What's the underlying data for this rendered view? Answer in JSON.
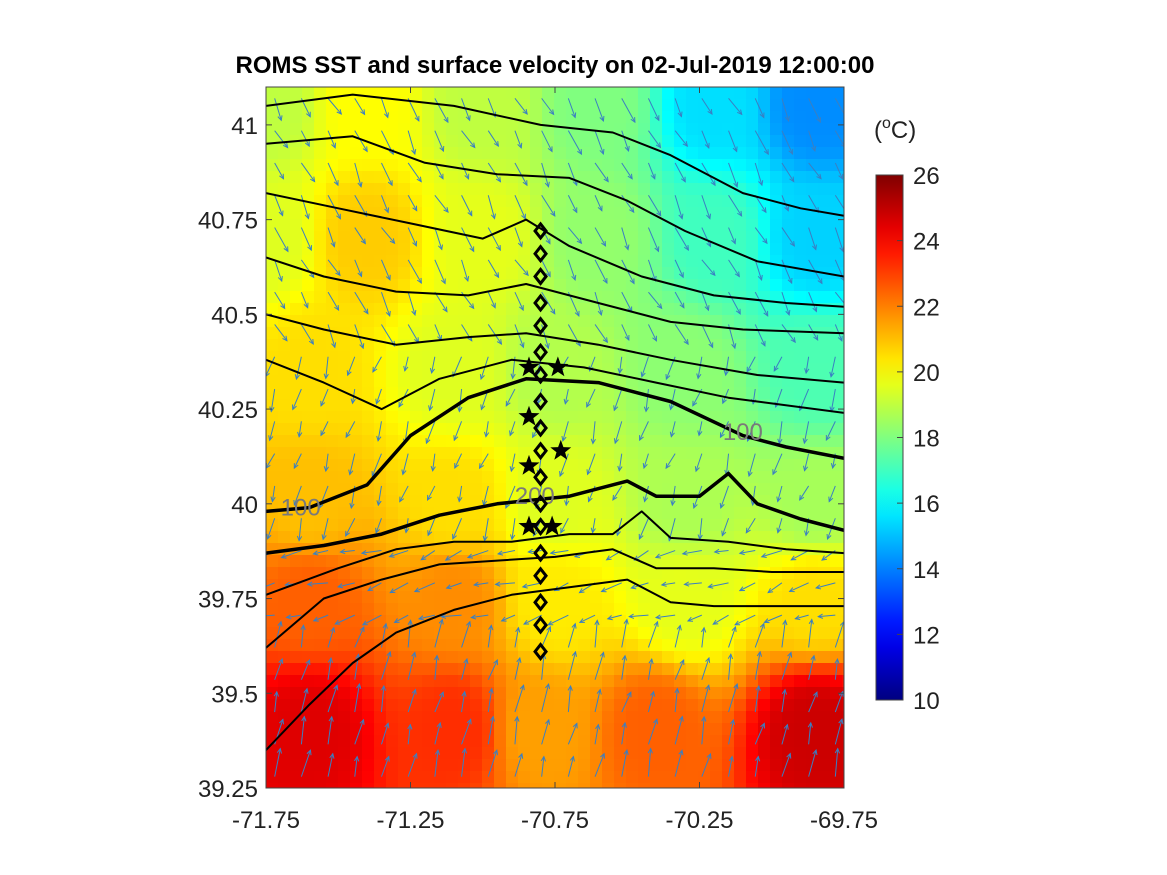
{
  "chart_data": {
    "type": "heatmap",
    "title": "ROMS SST and surface velocity on 02-Jul-2019 12:00:00",
    "xlabel": "",
    "ylabel": "",
    "xlim": [
      -71.75,
      -69.75
    ],
    "ylim": [
      39.25,
      41.1
    ],
    "x_ticks": [
      "-71.75",
      "-71.25",
      "-70.75",
      "-70.25",
      "-69.75"
    ],
    "y_ticks": [
      "39.25",
      "39.5",
      "39.75",
      "40",
      "40.25",
      "40.5",
      "40.75",
      "41"
    ],
    "colorbar": {
      "label_base": "(",
      "label_sup": "o",
      "label_unit": "C)",
      "range": [
        10,
        26
      ],
      "ticks": [
        "10",
        "12",
        "14",
        "16",
        "18",
        "20",
        "22",
        "24",
        "26"
      ],
      "colormap": "jet"
    },
    "sst_field": {
      "description_units": "degC",
      "anchors": [
        {
          "lon": -71.75,
          "lat": 41.05,
          "value": 19.0
        },
        {
          "lon": -71.4,
          "lat": 41.05,
          "value": 20.0
        },
        {
          "lon": -71.0,
          "lat": 41.05,
          "value": 19.0
        },
        {
          "lon": -70.6,
          "lat": 41.05,
          "value": 18.0
        },
        {
          "lon": -70.2,
          "lat": 41.05,
          "value": 15.5
        },
        {
          "lon": -69.85,
          "lat": 41.05,
          "value": 14.2
        },
        {
          "lon": -71.75,
          "lat": 40.7,
          "value": 19.5
        },
        {
          "lon": -71.4,
          "lat": 40.7,
          "value": 20.8
        },
        {
          "lon": -71.0,
          "lat": 40.7,
          "value": 19.6
        },
        {
          "lon": -70.6,
          "lat": 40.7,
          "value": 18.3
        },
        {
          "lon": -70.2,
          "lat": 40.7,
          "value": 17.0
        },
        {
          "lon": -69.85,
          "lat": 40.7,
          "value": 15.3
        },
        {
          "lon": -71.6,
          "lat": 40.35,
          "value": 20.5
        },
        {
          "lon": -71.1,
          "lat": 40.35,
          "value": 19.5
        },
        {
          "lon": -70.75,
          "lat": 40.35,
          "value": 18.8
        },
        {
          "lon": -70.3,
          "lat": 40.35,
          "value": 18.2
        },
        {
          "lon": -69.85,
          "lat": 40.35,
          "value": 17.2
        },
        {
          "lon": -71.6,
          "lat": 40.0,
          "value": 21.0
        },
        {
          "lon": -71.1,
          "lat": 40.0,
          "value": 20.5
        },
        {
          "lon": -70.75,
          "lat": 40.0,
          "value": 19.5
        },
        {
          "lon": -70.3,
          "lat": 40.0,
          "value": 18.7
        },
        {
          "lon": -69.85,
          "lat": 40.0,
          "value": 18.6
        },
        {
          "lon": -71.6,
          "lat": 39.75,
          "value": 22.5
        },
        {
          "lon": -71.1,
          "lat": 39.75,
          "value": 21.8
        },
        {
          "lon": -70.75,
          "lat": 39.75,
          "value": 20.3
        },
        {
          "lon": -70.3,
          "lat": 39.75,
          "value": 19.6
        },
        {
          "lon": -69.85,
          "lat": 39.75,
          "value": 20.5
        },
        {
          "lon": -71.6,
          "lat": 39.4,
          "value": 24.5
        },
        {
          "lon": -71.1,
          "lat": 39.4,
          "value": 23.3
        },
        {
          "lon": -70.8,
          "lat": 39.4,
          "value": 21.5
        },
        {
          "lon": -70.4,
          "lat": 39.4,
          "value": 22.5
        },
        {
          "lon": -69.85,
          "lat": 39.4,
          "value": 24.8
        }
      ]
    },
    "contours": [
      {
        "level": "",
        "bold": false,
        "points": [
          [
            -71.75,
            41.05
          ],
          [
            -71.45,
            41.08
          ],
          [
            -71.1,
            41.05
          ],
          [
            -70.8,
            41.0
          ],
          [
            -70.55,
            40.98
          ],
          [
            -70.35,
            40.92
          ],
          [
            -70.1,
            40.82
          ],
          [
            -69.9,
            40.78
          ],
          [
            -69.75,
            40.76
          ]
        ]
      },
      {
        "level": "",
        "bold": false,
        "points": [
          [
            -71.75,
            40.95
          ],
          [
            -71.45,
            40.97
          ],
          [
            -71.2,
            40.9
          ],
          [
            -70.95,
            40.87
          ],
          [
            -70.7,
            40.86
          ],
          [
            -70.5,
            40.8
          ],
          [
            -70.3,
            40.72
          ],
          [
            -70.05,
            40.64
          ],
          [
            -69.75,
            40.6
          ]
        ]
      },
      {
        "level": "",
        "bold": false,
        "points": [
          [
            -71.75,
            40.82
          ],
          [
            -71.5,
            40.78
          ],
          [
            -71.25,
            40.74
          ],
          [
            -71.0,
            40.7
          ],
          [
            -70.85,
            40.75
          ],
          [
            -70.7,
            40.68
          ],
          [
            -70.45,
            40.6
          ],
          [
            -70.2,
            40.55
          ],
          [
            -69.95,
            40.53
          ],
          [
            -69.75,
            40.52
          ]
        ]
      },
      {
        "level": "",
        "bold": false,
        "points": [
          [
            -71.75,
            40.65
          ],
          [
            -71.55,
            40.6
          ],
          [
            -71.3,
            40.56
          ],
          [
            -71.05,
            40.55
          ],
          [
            -70.85,
            40.58
          ],
          [
            -70.6,
            40.53
          ],
          [
            -70.35,
            40.48
          ],
          [
            -70.1,
            40.46
          ],
          [
            -69.75,
            40.45
          ]
        ]
      },
      {
        "level": "",
        "bold": false,
        "points": [
          [
            -71.75,
            40.5
          ],
          [
            -71.55,
            40.46
          ],
          [
            -71.3,
            40.42
          ],
          [
            -71.05,
            40.44
          ],
          [
            -70.85,
            40.45
          ],
          [
            -70.6,
            40.42
          ],
          [
            -70.35,
            40.38
          ],
          [
            -70.05,
            40.34
          ],
          [
            -69.75,
            40.32
          ]
        ]
      },
      {
        "level": "",
        "bold": false,
        "points": [
          [
            -71.75,
            40.38
          ],
          [
            -71.55,
            40.32
          ],
          [
            -71.35,
            40.25
          ],
          [
            -71.15,
            40.33
          ],
          [
            -70.9,
            40.38
          ],
          [
            -70.65,
            40.36
          ],
          [
            -70.4,
            40.32
          ],
          [
            -70.15,
            40.28
          ],
          [
            -69.75,
            40.24
          ]
        ]
      },
      {
        "level": "100",
        "bold": true,
        "points": [
          [
            -71.75,
            39.98
          ],
          [
            -71.6,
            39.99
          ],
          [
            -71.4,
            40.05
          ],
          [
            -71.25,
            40.18
          ],
          [
            -71.05,
            40.28
          ],
          [
            -70.85,
            40.33
          ],
          [
            -70.6,
            40.32
          ],
          [
            -70.35,
            40.27
          ],
          [
            -70.1,
            40.18
          ],
          [
            -69.95,
            40.15
          ],
          [
            -69.75,
            40.12
          ]
        ]
      },
      {
        "level": "200",
        "bold": true,
        "points": [
          [
            -71.75,
            39.87
          ],
          [
            -71.55,
            39.89
          ],
          [
            -71.35,
            39.92
          ],
          [
            -71.15,
            39.97
          ],
          [
            -70.95,
            40.0
          ],
          [
            -70.7,
            40.02
          ],
          [
            -70.5,
            40.06
          ],
          [
            -70.4,
            40.02
          ],
          [
            -70.25,
            40.02
          ],
          [
            -70.15,
            40.08
          ],
          [
            -70.05,
            40.0
          ],
          [
            -69.9,
            39.96
          ],
          [
            -69.75,
            39.93
          ]
        ]
      },
      {
        "level": "",
        "bold": false,
        "points": [
          [
            -71.75,
            39.76
          ],
          [
            -71.5,
            39.83
          ],
          [
            -71.3,
            39.88
          ],
          [
            -71.1,
            39.9
          ],
          [
            -70.9,
            39.9
          ],
          [
            -70.7,
            39.92
          ],
          [
            -70.55,
            39.92
          ],
          [
            -70.45,
            39.98
          ],
          [
            -70.35,
            39.91
          ],
          [
            -70.15,
            39.9
          ],
          [
            -69.95,
            39.88
          ],
          [
            -69.75,
            39.87
          ]
        ]
      },
      {
        "level": "",
        "bold": false,
        "points": [
          [
            -71.75,
            39.62
          ],
          [
            -71.55,
            39.75
          ],
          [
            -71.35,
            39.8
          ],
          [
            -71.15,
            39.84
          ],
          [
            -70.95,
            39.85
          ],
          [
            -70.75,
            39.86
          ],
          [
            -70.55,
            39.88
          ],
          [
            -70.4,
            39.83
          ],
          [
            -70.2,
            39.83
          ],
          [
            -70.0,
            39.82
          ],
          [
            -69.75,
            39.82
          ]
        ]
      },
      {
        "level": "",
        "bold": false,
        "points": [
          [
            -71.75,
            39.35
          ],
          [
            -71.6,
            39.47
          ],
          [
            -71.45,
            39.58
          ],
          [
            -71.3,
            39.66
          ],
          [
            -71.1,
            39.72
          ],
          [
            -70.9,
            39.76
          ],
          [
            -70.7,
            39.78
          ],
          [
            -70.5,
            39.8
          ],
          [
            -70.35,
            39.74
          ],
          [
            -70.2,
            39.73
          ],
          [
            -70.0,
            39.73
          ],
          [
            -69.75,
            39.73
          ]
        ]
      }
    ],
    "station_diamonds": [
      [
        -70.8,
        40.72
      ],
      [
        -70.8,
        40.66
      ],
      [
        -70.8,
        40.6
      ],
      [
        -70.8,
        40.53
      ],
      [
        -70.8,
        40.47
      ],
      [
        -70.8,
        40.4
      ],
      [
        -70.8,
        40.34
      ],
      [
        -70.8,
        40.27
      ],
      [
        -70.8,
        40.2
      ],
      [
        -70.8,
        40.14
      ],
      [
        -70.8,
        40.07
      ],
      [
        -70.8,
        40.0
      ],
      [
        -70.8,
        39.94
      ],
      [
        -70.8,
        39.87
      ],
      [
        -70.8,
        39.81
      ],
      [
        -70.8,
        39.74
      ],
      [
        -70.8,
        39.68
      ],
      [
        -70.8,
        39.61
      ]
    ],
    "station_stars": [
      [
        -70.84,
        40.36
      ],
      [
        -70.74,
        40.36
      ],
      [
        -70.84,
        40.23
      ],
      [
        -70.73,
        40.14
      ],
      [
        -70.84,
        40.1
      ],
      [
        -70.84,
        39.94
      ],
      [
        -70.76,
        39.94
      ]
    ],
    "velocity": {
      "color": "#3a7fc2",
      "grid_lon": [
        -71.72,
        -69.78
      ],
      "grid_lat": [
        39.28,
        41.07
      ],
      "n_cols": 22,
      "n_rows": 22,
      "regimes": [
        {
          "lat_min": 40.45,
          "lat_max": 41.1,
          "u": 0.35,
          "v": -0.7
        },
        {
          "lat_min": 39.95,
          "lat_max": 40.45,
          "u": -0.2,
          "v": -0.65
        },
        {
          "lat_min": 39.65,
          "lat_max": 39.95,
          "u": -0.6,
          "v": -0.2
        },
        {
          "lat_min": 39.25,
          "lat_max": 39.65,
          "u": 0.2,
          "v": 0.85
        }
      ]
    }
  }
}
